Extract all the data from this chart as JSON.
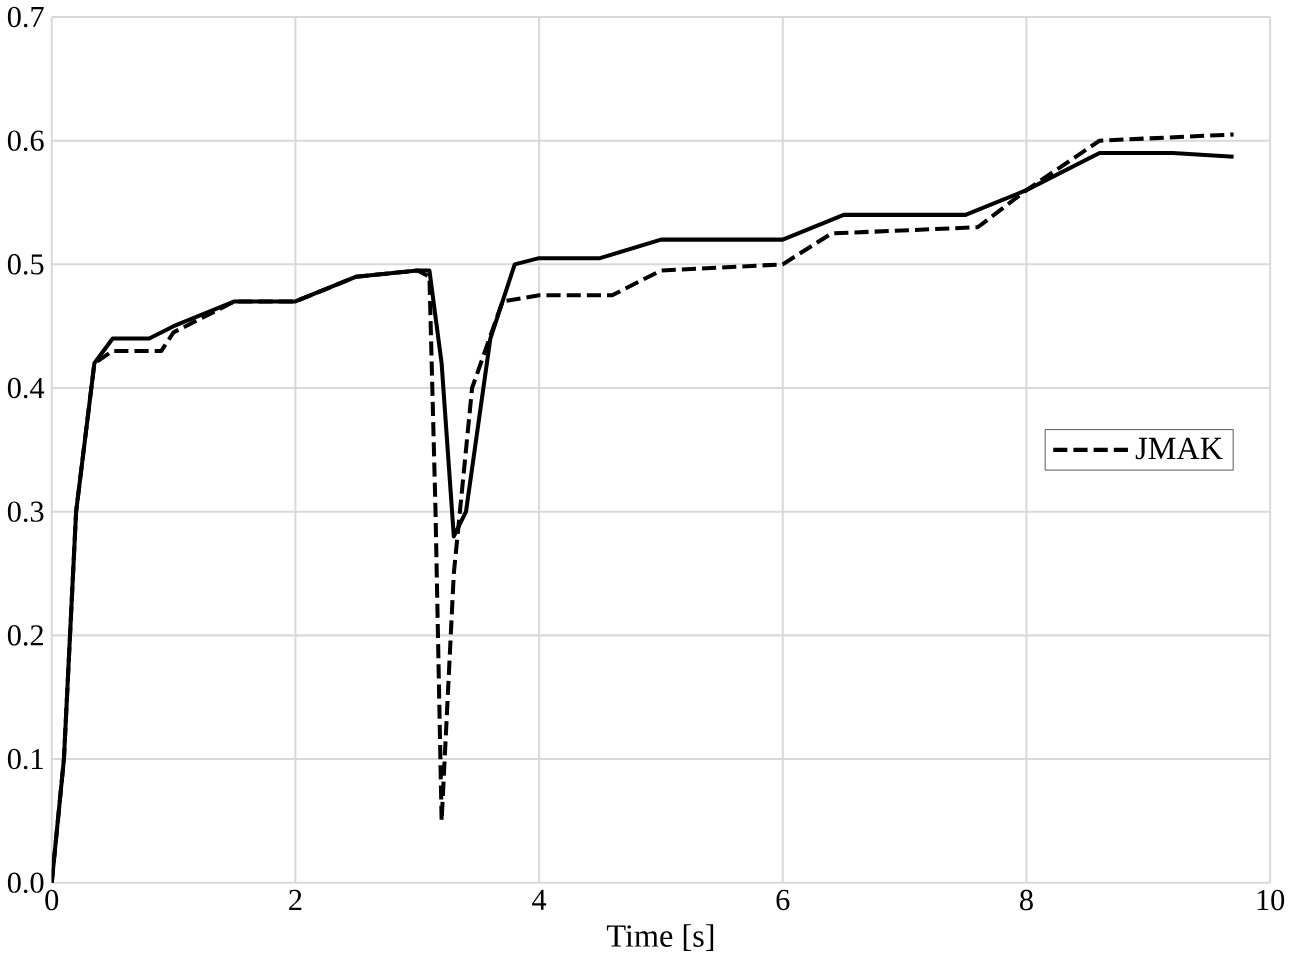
{
  "chart_data": {
    "type": "line",
    "xlabel": "Time [s]",
    "xlim": [
      0,
      10
    ],
    "ylim": [
      0,
      0.7
    ],
    "xticks": [
      0,
      2,
      4,
      6,
      8,
      10
    ],
    "yticks": [
      {
        "value": 0,
        "label": "0.0"
      },
      0.1,
      0.2,
      0.3,
      0.4,
      0.5,
      0.6,
      0.7
    ],
    "grid": true,
    "legend": "right",
    "marker": "none",
    "series": [
      {
        "color": "#000000",
        "line_style": "solid",
        "x": [
          0,
          0.1,
          0.2,
          0.35,
          0.5,
          0.8,
          1.0,
          1.5,
          2.0,
          2.5,
          3.0,
          3.1,
          3.2,
          3.3,
          3.4,
          3.6,
          3.8,
          4.0,
          4.5,
          5.0,
          6.0,
          6.5,
          7.5,
          8.0,
          8.6,
          9.2,
          9.7
        ],
        "values": [
          0,
          0.1,
          0.3,
          0.42,
          0.44,
          0.44,
          0.45,
          0.47,
          0.47,
          0.49,
          0.495,
          0.495,
          0.42,
          0.28,
          0.3,
          0.44,
          0.5,
          0.505,
          0.505,
          0.52,
          0.52,
          0.54,
          0.54,
          0.56,
          0.59,
          0.59,
          0.587
        ]
      },
      {
        "name": "JMAK",
        "color": "#000000",
        "line_style": "dashed",
        "x": [
          0,
          0.1,
          0.2,
          0.35,
          0.5,
          0.9,
          1.0,
          1.5,
          2.0,
          2.5,
          3.0,
          3.1,
          3.15,
          3.2,
          3.3,
          3.45,
          3.7,
          4.0,
          4.6,
          5.0,
          6.0,
          6.4,
          7.6,
          8.0,
          8.6,
          9.7
        ],
        "values": [
          0,
          0.1,
          0.3,
          0.42,
          0.43,
          0.43,
          0.445,
          0.47,
          0.47,
          0.49,
          0.495,
          0.49,
          0.3,
          0.05,
          0.25,
          0.4,
          0.47,
          0.475,
          0.475,
          0.495,
          0.5,
          0.525,
          0.53,
          0.56,
          0.6,
          0.605
        ]
      }
    ]
  }
}
